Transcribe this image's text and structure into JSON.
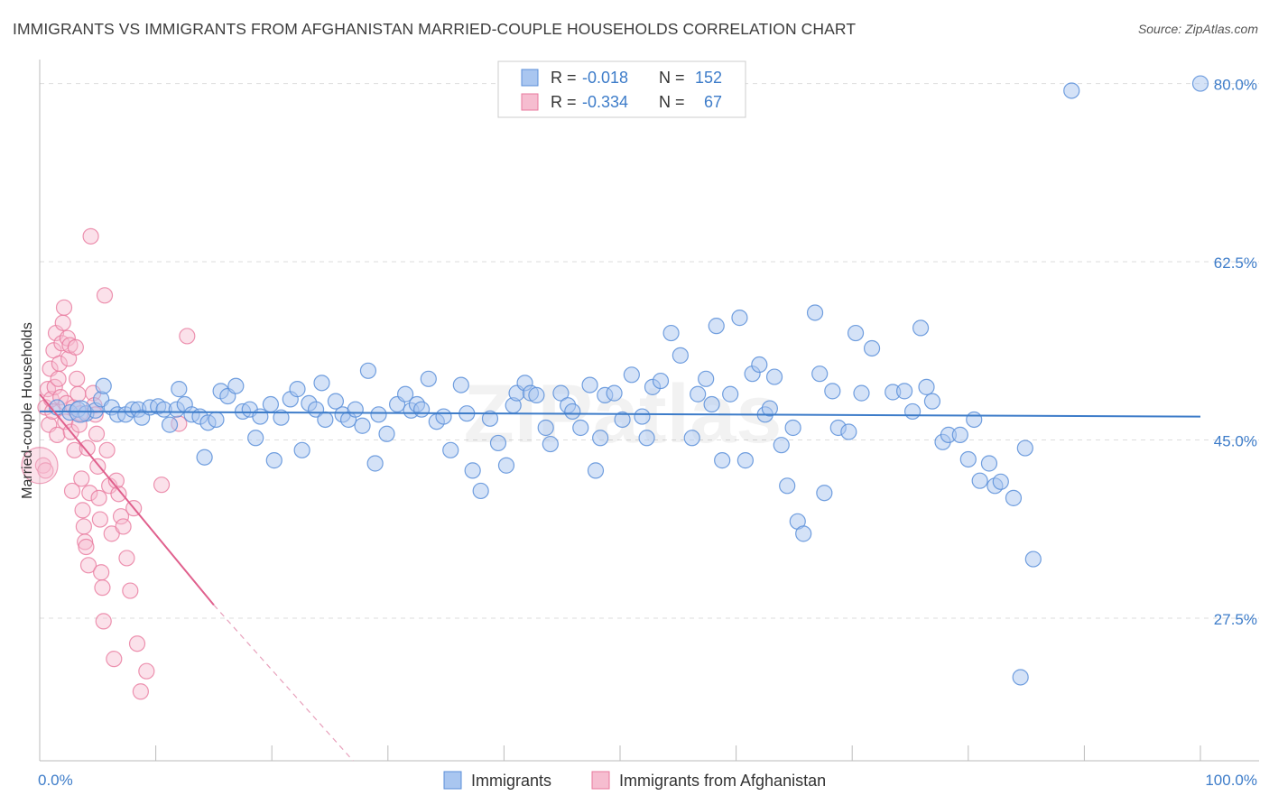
{
  "title": "IMMIGRANTS VS IMMIGRANTS FROM AFGHANISTAN MARRIED-COUPLE HOUSEHOLDS CORRELATION CHART",
  "source": "Source: ZipAtlas.com",
  "watermark": "ZIPatlas",
  "colors": {
    "blue": "#5b8fd9",
    "blue_fill": "#a9c6f0",
    "pink": "#e8799e",
    "pink_fill": "#f6bdd0",
    "axis_text": "#3d7cc9",
    "grid": "#dddddd"
  },
  "legend": {
    "rows": [
      {
        "r_label": "R =",
        "r_value": "-0.018",
        "n_label": "N =",
        "n_value": "152"
      },
      {
        "r_label": "R =",
        "r_value": "-0.334",
        "n_label": "N =",
        "n_value": "67"
      }
    ]
  },
  "bottom_legend": {
    "items": [
      "Immigrants",
      "Immigrants from Afghanistan"
    ]
  },
  "chart_data": {
    "type": "scatter",
    "title": "IMMIGRANTS VS IMMIGRANTS FROM AFGHANISTAN MARRIED-COUPLE HOUSEHOLDS CORRELATION CHART",
    "ylabel": "Married-couple Households",
    "xlim": [
      0,
      100
    ],
    "ylim": [
      13.5,
      82
    ],
    "x_tick_labels": [
      "0.0%",
      "100.0%"
    ],
    "y_ticks": [
      27.5,
      45.0,
      62.5,
      80.0
    ],
    "y_tick_labels": [
      "27.5%",
      "45.0%",
      "62.5%",
      "80.0%"
    ],
    "grid": true,
    "series": [
      {
        "name": "Immigrants",
        "color": "#5b8fd9",
        "trend": {
          "x": [
            0,
            100
          ],
          "y": [
            47.8,
            47.3
          ]
        },
        "points": [
          [
            1.5,
            48.2
          ],
          [
            2.6,
            47.7
          ],
          [
            3.3,
            48.0
          ],
          [
            4.0,
            47.6
          ],
          [
            4.8,
            47.9
          ],
          [
            5.3,
            49.0
          ],
          [
            5.5,
            50.3
          ],
          [
            6.2,
            48.2
          ],
          [
            6.7,
            47.5
          ],
          [
            7.4,
            47.5
          ],
          [
            8.0,
            48.0
          ],
          [
            8.5,
            48.0
          ],
          [
            8.8,
            47.2
          ],
          [
            9.5,
            48.2
          ],
          [
            10.2,
            48.3
          ],
          [
            10.7,
            48.0
          ],
          [
            11.2,
            46.5
          ],
          [
            11.8,
            48.0
          ],
          [
            12.0,
            50.0
          ],
          [
            12.5,
            48.5
          ],
          [
            13.1,
            47.5
          ],
          [
            13.8,
            47.3
          ],
          [
            14.2,
            43.3
          ],
          [
            14.5,
            46.7
          ],
          [
            15.2,
            47.0
          ],
          [
            15.6,
            49.8
          ],
          [
            16.2,
            49.3
          ],
          [
            16.9,
            50.3
          ],
          [
            17.5,
            47.8
          ],
          [
            18.1,
            48.0
          ],
          [
            18.6,
            45.2
          ],
          [
            19.0,
            47.3
          ],
          [
            19.9,
            48.5
          ],
          [
            20.2,
            43.0
          ],
          [
            20.8,
            47.2
          ],
          [
            21.6,
            49.0
          ],
          [
            22.2,
            50.0
          ],
          [
            22.6,
            44.0
          ],
          [
            23.2,
            48.6
          ],
          [
            23.8,
            48.0
          ],
          [
            24.3,
            50.6
          ],
          [
            24.6,
            47.0
          ],
          [
            25.5,
            48.8
          ],
          [
            26.1,
            47.5
          ],
          [
            26.6,
            47.0
          ],
          [
            27.2,
            48.0
          ],
          [
            27.8,
            46.4
          ],
          [
            28.3,
            51.8
          ],
          [
            28.9,
            42.7
          ],
          [
            29.2,
            47.5
          ],
          [
            29.9,
            45.6
          ],
          [
            30.8,
            48.5
          ],
          [
            31.5,
            49.5
          ],
          [
            32.0,
            47.9
          ],
          [
            32.5,
            48.5
          ],
          [
            32.9,
            48.0
          ],
          [
            33.5,
            51.0
          ],
          [
            34.2,
            46.8
          ],
          [
            34.8,
            47.3
          ],
          [
            35.4,
            44.0
          ],
          [
            36.3,
            50.4
          ],
          [
            36.8,
            47.6
          ],
          [
            37.3,
            42.0
          ],
          [
            38.0,
            40.0
          ],
          [
            38.8,
            47.1
          ],
          [
            39.5,
            44.7
          ],
          [
            40.2,
            42.5
          ],
          [
            40.8,
            48.4
          ],
          [
            41.1,
            49.6
          ],
          [
            41.8,
            50.6
          ],
          [
            42.3,
            49.6
          ],
          [
            42.8,
            49.4
          ],
          [
            43.6,
            46.2
          ],
          [
            44.0,
            44.6
          ],
          [
            44.9,
            49.6
          ],
          [
            45.5,
            48.4
          ],
          [
            45.9,
            47.8
          ],
          [
            46.6,
            46.2
          ],
          [
            47.4,
            50.4
          ],
          [
            47.9,
            42.0
          ],
          [
            48.3,
            45.2
          ],
          [
            48.7,
            49.4
          ],
          [
            49.5,
            49.6
          ],
          [
            50.2,
            47.0
          ],
          [
            51.0,
            51.4
          ],
          [
            51.9,
            47.3
          ],
          [
            52.3,
            45.2
          ],
          [
            52.8,
            50.2
          ],
          [
            53.5,
            50.8
          ],
          [
            54.4,
            55.5
          ],
          [
            55.2,
            53.3
          ],
          [
            56.2,
            45.2
          ],
          [
            56.7,
            49.5
          ],
          [
            57.4,
            51.0
          ],
          [
            57.9,
            48.5
          ],
          [
            58.3,
            56.2
          ],
          [
            58.8,
            43.0
          ],
          [
            59.5,
            49.5
          ],
          [
            60.3,
            57.0
          ],
          [
            60.8,
            43.0
          ],
          [
            61.4,
            51.5
          ],
          [
            62.0,
            52.4
          ],
          [
            62.5,
            47.5
          ],
          [
            62.9,
            48.1
          ],
          [
            63.3,
            51.2
          ],
          [
            63.9,
            44.5
          ],
          [
            64.4,
            40.5
          ],
          [
            64.9,
            46.2
          ],
          [
            65.3,
            37.0
          ],
          [
            65.8,
            35.8
          ],
          [
            66.8,
            57.5
          ],
          [
            67.2,
            51.5
          ],
          [
            67.6,
            39.8
          ],
          [
            68.3,
            49.8
          ],
          [
            68.8,
            46.2
          ],
          [
            69.7,
            45.8
          ],
          [
            70.3,
            55.5
          ],
          [
            70.8,
            49.6
          ],
          [
            71.7,
            54.0
          ],
          [
            73.5,
            49.7
          ],
          [
            74.5,
            49.8
          ],
          [
            75.2,
            47.8
          ],
          [
            75.9,
            56.0
          ],
          [
            76.4,
            50.2
          ],
          [
            76.9,
            48.8
          ],
          [
            77.8,
            44.8
          ],
          [
            78.3,
            45.5
          ],
          [
            79.3,
            45.5
          ],
          [
            80.0,
            43.1
          ],
          [
            80.5,
            47.0
          ],
          [
            81.0,
            41.0
          ],
          [
            81.8,
            42.7
          ],
          [
            82.3,
            40.5
          ],
          [
            82.8,
            40.9
          ],
          [
            83.9,
            39.3
          ],
          [
            84.5,
            21.7
          ],
          [
            84.9,
            44.2
          ],
          [
            85.6,
            33.3
          ],
          [
            88.9,
            79.3
          ],
          [
            100.0,
            80.0
          ]
        ]
      },
      {
        "name": "Immigrants from Afghanistan",
        "color": "#e8799e",
        "trend": {
          "x": [
            0,
            15
          ],
          "y": [
            49.5,
            28.8
          ],
          "dashed_to": {
            "x": 27,
            "y": 13.5
          }
        },
        "points": [
          [
            0.3,
            42.5
          ],
          [
            0.5,
            48.2
          ],
          [
            0.7,
            50.0
          ],
          [
            0.8,
            46.5
          ],
          [
            0.9,
            52.0
          ],
          [
            1.0,
            49.0
          ],
          [
            1.1,
            47.8
          ],
          [
            1.2,
            53.8
          ],
          [
            1.3,
            50.2
          ],
          [
            1.4,
            55.5
          ],
          [
            1.5,
            45.5
          ],
          [
            1.6,
            51.0
          ],
          [
            1.7,
            52.5
          ],
          [
            1.8,
            49.2
          ],
          [
            1.9,
            54.5
          ],
          [
            2.0,
            56.5
          ],
          [
            2.1,
            58.0
          ],
          [
            2.2,
            46.8
          ],
          [
            2.3,
            48.6
          ],
          [
            2.4,
            55.0
          ],
          [
            2.5,
            53.0
          ],
          [
            2.6,
            54.3
          ],
          [
            2.7,
            45.8
          ],
          [
            2.8,
            40.0
          ],
          [
            2.9,
            48.2
          ],
          [
            3.0,
            44.0
          ],
          [
            3.1,
            54.1
          ],
          [
            3.2,
            51.0
          ],
          [
            3.3,
            49.5
          ],
          [
            3.4,
            46.5
          ],
          [
            3.5,
            47.6
          ],
          [
            3.6,
            41.2
          ],
          [
            3.7,
            38.1
          ],
          [
            3.8,
            36.5
          ],
          [
            3.9,
            35.0
          ],
          [
            4.0,
            34.5
          ],
          [
            4.1,
            44.2
          ],
          [
            4.2,
            32.7
          ],
          [
            4.3,
            39.8
          ],
          [
            4.4,
            65.0
          ],
          [
            4.6,
            49.6
          ],
          [
            4.7,
            48.4
          ],
          [
            4.8,
            47.5
          ],
          [
            4.9,
            45.6
          ],
          [
            5.0,
            42.4
          ],
          [
            5.1,
            39.3
          ],
          [
            5.2,
            37.2
          ],
          [
            5.3,
            32.0
          ],
          [
            5.4,
            30.5
          ],
          [
            5.5,
            27.2
          ],
          [
            5.6,
            59.2
          ],
          [
            5.8,
            44.0
          ],
          [
            6.0,
            40.5
          ],
          [
            6.2,
            35.8
          ],
          [
            6.4,
            23.5
          ],
          [
            6.6,
            41.0
          ],
          [
            6.8,
            39.7
          ],
          [
            7.0,
            37.5
          ],
          [
            7.2,
            36.5
          ],
          [
            7.5,
            33.4
          ],
          [
            7.8,
            30.2
          ],
          [
            8.1,
            38.3
          ],
          [
            8.4,
            25.0
          ],
          [
            8.7,
            20.3
          ],
          [
            9.2,
            22.3
          ],
          [
            10.5,
            40.6
          ],
          [
            12.0,
            46.6
          ],
          [
            12.7,
            55.2
          ],
          [
            0.5,
            42.0
          ]
        ]
      }
    ]
  }
}
